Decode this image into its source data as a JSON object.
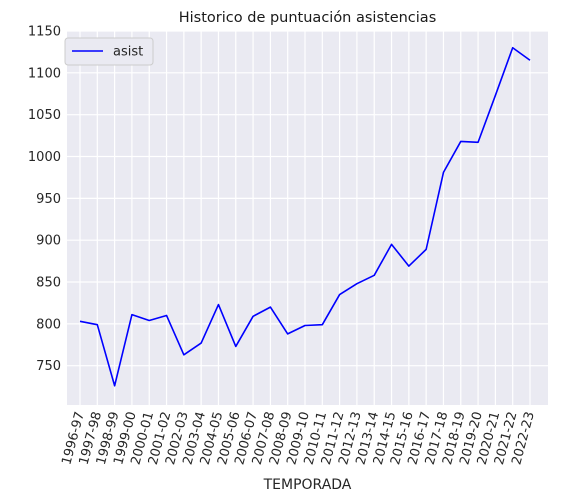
{
  "chart_data": {
    "type": "line",
    "title": "Historico de puntuación asistencias",
    "xlabel": "TEMPORADA",
    "ylabel": "",
    "categories": [
      "1996-97",
      "1997-98",
      "1998-99",
      "1999-00",
      "2000-01",
      "2001-02",
      "2002-03",
      "2003-04",
      "2004-05",
      "2005-06",
      "2006-07",
      "2007-08",
      "2008-09",
      "2009-10",
      "2010-11",
      "2011-12",
      "2012-13",
      "2013-14",
      "2014-15",
      "2015-16",
      "2016-17",
      "2017-18",
      "2018-19",
      "2019-20",
      "2020-21",
      "2021-22",
      "2022-23"
    ],
    "series": [
      {
        "name": "asist",
        "color": "#0000ff",
        "values": [
          803,
          799,
          726,
          811,
          804,
          810,
          763,
          777,
          823,
          773,
          809,
          820,
          788,
          798,
          799,
          835,
          848,
          858,
          895,
          869,
          889,
          981,
          1018,
          1017,
          1073,
          1130,
          1115
        ]
      }
    ],
    "yticks": [
      750,
      800,
      850,
      900,
      950,
      1000,
      1050,
      1100,
      1150
    ],
    "ylim": [
      703,
      1150
    ],
    "grid": true,
    "background": "#eaeaf2",
    "legend_position": "top-left"
  }
}
